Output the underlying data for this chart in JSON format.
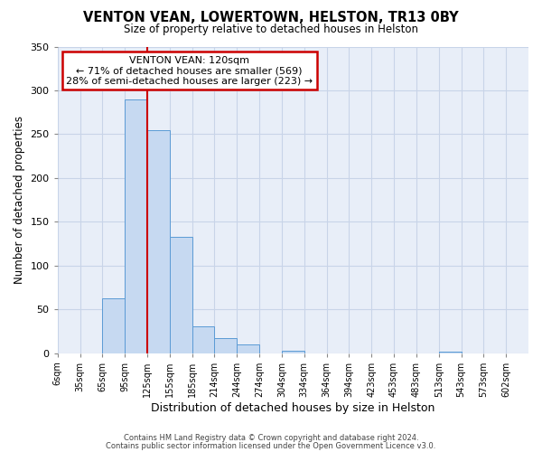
{
  "title": "VENTON VEAN, LOWERTOWN, HELSTON, TR13 0BY",
  "subtitle": "Size of property relative to detached houses in Helston",
  "xlabel": "Distribution of detached houses by size in Helston",
  "ylabel": "Number of detached properties",
  "bin_labels": [
    "6sqm",
    "35sqm",
    "65sqm",
    "95sqm",
    "125sqm",
    "155sqm",
    "185sqm",
    "214sqm",
    "244sqm",
    "274sqm",
    "304sqm",
    "334sqm",
    "364sqm",
    "394sqm",
    "423sqm",
    "453sqm",
    "483sqm",
    "513sqm",
    "543sqm",
    "573sqm",
    "602sqm"
  ],
  "bar_heights": [
    0,
    0,
    62,
    290,
    255,
    133,
    30,
    17,
    10,
    0,
    3,
    0,
    0,
    0,
    0,
    0,
    0,
    2,
    0,
    0,
    0
  ],
  "bar_color": "#c6d9f1",
  "bar_edge_color": "#5b9bd5",
  "property_line_index": 3.5,
  "vline_color": "#cc0000",
  "annotation_title": "VENTON VEAN: 120sqm",
  "annotation_line1": "← 71% of detached houses are smaller (569)",
  "annotation_line2": "28% of semi-detached houses are larger (223) →",
  "annotation_box_color": "#cc0000",
  "ylim": [
    0,
    350
  ],
  "yticks": [
    0,
    50,
    100,
    150,
    200,
    250,
    300,
    350
  ],
  "grid_color": "#c8d4e8",
  "bg_color": "#e8eef8",
  "footer_line1": "Contains HM Land Registry data © Crown copyright and database right 2024.",
  "footer_line2": "Contains public sector information licensed under the Open Government Licence v3.0."
}
